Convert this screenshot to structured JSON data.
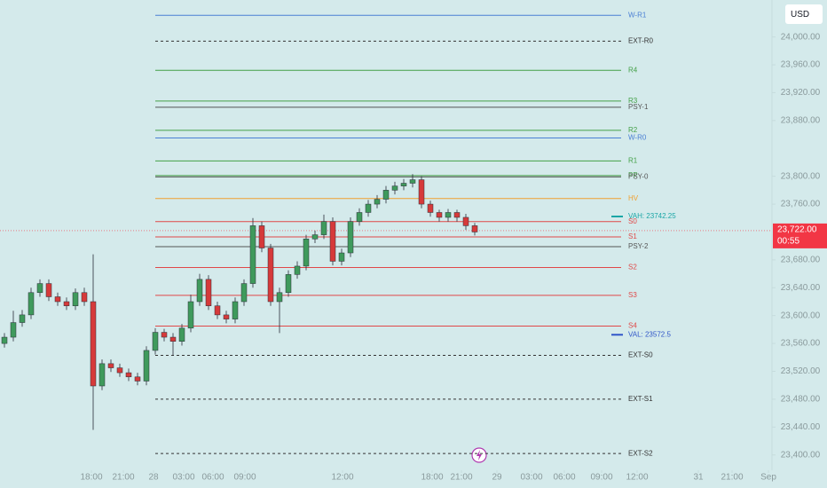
{
  "chart_data": {
    "type": "candlestick",
    "currency": "USD",
    "xlim": [
      0,
      87
    ],
    "ylim": [
      23378,
      24053
    ],
    "xticks": [
      {
        "value": 10.3,
        "label": "18:00"
      },
      {
        "value": 13.9,
        "label": "21:00"
      },
      {
        "value": 17.3,
        "label": "28"
      },
      {
        "value": 20.7,
        "label": "03:00"
      },
      {
        "value": 24.0,
        "label": "06:00"
      },
      {
        "value": 27.6,
        "label": "09:00"
      },
      {
        "value": 38.6,
        "label": "12:00"
      },
      {
        "value": 48.7,
        "label": "18:00"
      },
      {
        "value": 52.0,
        "label": "21:00"
      },
      {
        "value": 56.0,
        "label": "29"
      },
      {
        "value": 59.9,
        "label": "03:00"
      },
      {
        "value": 63.6,
        "label": "06:00"
      },
      {
        "value": 67.8,
        "label": "09:00"
      },
      {
        "value": 71.8,
        "label": "12:00"
      },
      {
        "value": 78.7,
        "label": "31"
      },
      {
        "value": 82.5,
        "label": "21:00"
      },
      {
        "value": 86.6,
        "label": "Sep"
      }
    ],
    "yticks": [
      {
        "value": 24000,
        "label": "24,000.00"
      },
      {
        "value": 23960,
        "label": "23,960.00"
      },
      {
        "value": 23920,
        "label": "23,920.00"
      },
      {
        "value": 23880,
        "label": "23,880.00"
      },
      {
        "value": 23800,
        "label": "23,800.00"
      },
      {
        "value": 23760,
        "label": "23,760.00"
      },
      {
        "value": 23680,
        "label": "23,680.00"
      },
      {
        "value": 23640,
        "label": "23,640.00"
      },
      {
        "value": 23600,
        "label": "23,600.00"
      },
      {
        "value": 23560,
        "label": "23,560.00"
      },
      {
        "value": 23520,
        "label": "23,520.00"
      },
      {
        "value": 23480,
        "label": "23,480.00"
      },
      {
        "value": 23440,
        "label": "23,440.00"
      },
      {
        "value": 23400,
        "label": "23,400.00"
      }
    ],
    "up_color": "#3f9a5c",
    "down_color": "#d63a3a",
    "x": [
      0.5,
      1.5,
      2.5,
      3.5,
      4.5,
      5.5,
      6.5,
      7.5,
      8.5,
      9.5,
      10.5,
      11.5,
      12.5,
      13.5,
      14.5,
      15.5,
      16.5,
      17.5,
      18.5,
      19.5,
      20.5,
      21.5,
      22.5,
      23.5,
      24.5,
      25.5,
      26.5,
      27.5,
      28.5,
      29.5,
      30.5,
      31.5,
      32.5,
      33.5,
      34.5,
      35.5,
      36.5,
      37.5,
      38.5,
      39.5,
      40.5,
      41.5,
      42.5,
      43.5,
      44.5,
      45.5,
      46.5,
      47.5,
      48.5,
      49.5,
      50.5,
      51.5,
      52.5,
      53.5
    ],
    "open": [
      23560,
      23569,
      23590,
      23601,
      23633,
      23646,
      23627,
      23620,
      23614,
      23633,
      23620,
      23499,
      23531,
      23525,
      23518,
      23512,
      23506,
      23550,
      23576,
      23569,
      23563,
      23582,
      23620,
      23652,
      23614,
      23601,
      23595,
      23620,
      23646,
      23729,
      23697,
      23620,
      23633,
      23659,
      23671,
      23710,
      23716,
      23735,
      23678,
      23690,
      23735,
      23748,
      23760,
      23767,
      23780,
      23786,
      23790,
      23795,
      23760,
      23748,
      23741,
      23748,
      23741,
      23729
    ],
    "high": [
      23575,
      23607,
      23608,
      23640,
      23652,
      23652,
      23633,
      23626,
      23639,
      23640,
      23688,
      23537,
      23537,
      23531,
      23524,
      23518,
      23556,
      23582,
      23581,
      23575,
      23588,
      23630,
      23660,
      23658,
      23620,
      23607,
      23626,
      23652,
      23740,
      23735,
      23703,
      23640,
      23665,
      23678,
      23716,
      23722,
      23745,
      23741,
      23696,
      23741,
      23754,
      23766,
      23773,
      23786,
      23792,
      23796,
      23803,
      23800,
      23765,
      23752,
      23753,
      23752,
      23746,
      23733
    ],
    "low": [
      23554,
      23563,
      23584,
      23595,
      23627,
      23621,
      23614,
      23608,
      23608,
      23614,
      23436,
      23493,
      23519,
      23512,
      23506,
      23500,
      23500,
      23544,
      23563,
      23543,
      23557,
      23576,
      23614,
      23608,
      23595,
      23589,
      23589,
      23614,
      23640,
      23691,
      23614,
      23575,
      23627,
      23653,
      23665,
      23704,
      23710,
      23672,
      23672,
      23684,
      23729,
      23742,
      23754,
      23761,
      23774,
      23780,
      23784,
      23754,
      23742,
      23735,
      23735,
      23735,
      23723,
      23715
    ],
    "close": [
      23569,
      23590,
      23601,
      23633,
      23646,
      23627,
      23620,
      23614,
      23633,
      23620,
      23499,
      23531,
      23525,
      23518,
      23512,
      23506,
      23550,
      23576,
      23569,
      23563,
      23582,
      23620,
      23652,
      23614,
      23601,
      23595,
      23620,
      23646,
      23729,
      23697,
      23620,
      23633,
      23659,
      23671,
      23710,
      23716,
      23735,
      23678,
      23690,
      23735,
      23748,
      23760,
      23767,
      23780,
      23786,
      23790,
      23795,
      23760,
      23748,
      23741,
      23748,
      23741,
      23729,
      23720
    ],
    "levels": [
      {
        "label": "W-R1",
        "value": 24031,
        "color": "#4a7fd4",
        "style": "solid"
      },
      {
        "label": "EXT-R0",
        "value": 23994,
        "color": "#333333",
        "style": "dashed"
      },
      {
        "label": "R4",
        "value": 23952,
        "color": "#43a047",
        "style": "solid"
      },
      {
        "label": "R3",
        "value": 23908,
        "color": "#43a047",
        "style": "solid"
      },
      {
        "label": "PSY-1",
        "value": 23899,
        "color": "#555555",
        "style": "solid"
      },
      {
        "label": "R2",
        "value": 23866,
        "color": "#43a047",
        "style": "solid"
      },
      {
        "label": "W-R0",
        "value": 23855,
        "color": "#4a7fd4",
        "style": "solid"
      },
      {
        "label": "R1",
        "value": 23822,
        "color": "#43a047",
        "style": "solid"
      },
      {
        "label": "PP",
        "value": 23801,
        "color": "#43a047",
        "style": "solid"
      },
      {
        "label": "PSY-0",
        "value": 23799,
        "color": "#555555",
        "style": "solid"
      },
      {
        "label": "HV",
        "value": 23768,
        "color": "#f0a030",
        "style": "solid"
      },
      {
        "label": "VAH: 23742.25",
        "value": 23742.25,
        "color": "#1aa6a6",
        "style": "marker"
      },
      {
        "label": "S0",
        "value": 23735,
        "color": "#e04848",
        "style": "solid"
      },
      {
        "label": "S1",
        "value": 23713,
        "color": "#e04848",
        "style": "solid"
      },
      {
        "label": "PSY-2",
        "value": 23699,
        "color": "#555555",
        "style": "solid"
      },
      {
        "label": "S2",
        "value": 23669,
        "color": "#e04848",
        "style": "solid"
      },
      {
        "label": "S3",
        "value": 23629,
        "color": "#e04848",
        "style": "solid"
      },
      {
        "label": "S4",
        "value": 23585,
        "color": "#e04848",
        "style": "solid"
      },
      {
        "label": "VAL: 23572.5",
        "value": 23572.5,
        "color": "#2f55c8",
        "style": "marker"
      },
      {
        "label": "EXT-S0",
        "value": 23543,
        "color": "#333333",
        "style": "dashed"
      },
      {
        "label": "EXT-S1",
        "value": 23480,
        "color": "#333333",
        "style": "dashed"
      },
      {
        "label": "EXT-S2",
        "value": 23402,
        "color": "#333333",
        "style": "dashed"
      }
    ],
    "last_price": {
      "value": 23722,
      "label": "23,722.00",
      "countdown": "00:55",
      "color": "#f23645"
    }
  }
}
